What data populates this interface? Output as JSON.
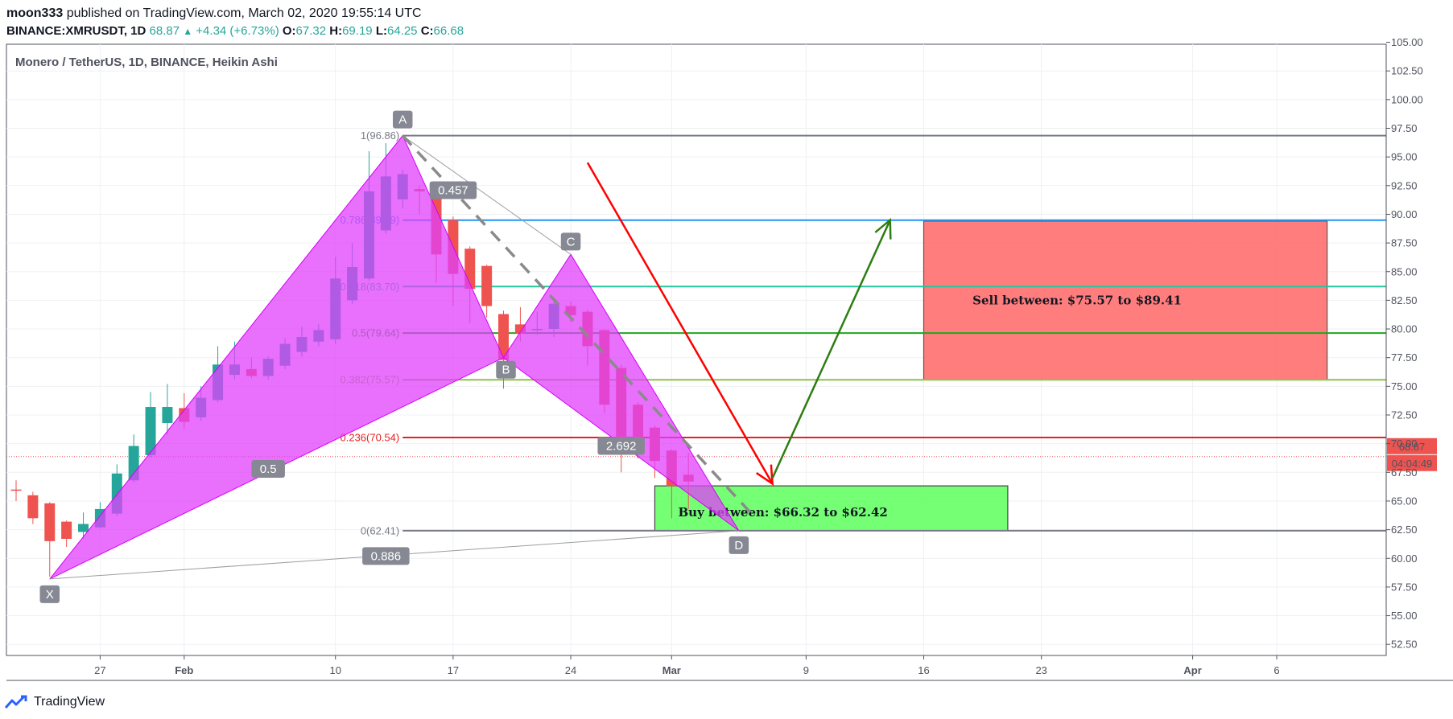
{
  "header": {
    "author": "moon333",
    "published": "published on TradingView.com, March 02, 2020 19:55:14 UTC",
    "symbol": "BINANCE:XMRUSDT, 1D",
    "last": "68.87",
    "change": "+4.34 (+6.73%)",
    "o_label": "O:",
    "o_value": "67.32",
    "h_label": "H:",
    "h_value": "69.19",
    "l_label": "L:",
    "l_value": "64.25",
    "c_label": "C:",
    "c_value": "66.68"
  },
  "colors": {
    "up": "#26a69a",
    "down": "#ef5350",
    "pattern_fill": "#e040fb",
    "pattern_stroke": "#d500f9",
    "buy_zone": "#66ff66",
    "sell_zone": "#ff6f6f",
    "price_tag": "#ef5350",
    "red_arrow": "#ff0000",
    "green_arrow": "#2e7d12"
  },
  "footer": {
    "brand": "TradingView",
    "logo_icon": "tradingview-logo-icon"
  },
  "chart_data": {
    "type": "candlestick",
    "title": "Monero / TetherUS, 1D, BINANCE, Heikin Ashi",
    "x_axis": {
      "start_date": "2020-01-22",
      "end_date": "2020-04-13",
      "ticks": [
        {
          "date": "2020-01-27",
          "label": "27"
        },
        {
          "date": "2020-02-01",
          "label": "Feb"
        },
        {
          "date": "2020-02-10",
          "label": "10"
        },
        {
          "date": "2020-02-17",
          "label": "17"
        },
        {
          "date": "2020-02-24",
          "label": "24"
        },
        {
          "date": "2020-03-01",
          "label": "Mar"
        },
        {
          "date": "2020-03-09",
          "label": "9"
        },
        {
          "date": "2020-03-16",
          "label": "16"
        },
        {
          "date": "2020-03-23",
          "label": "23"
        },
        {
          "date": "2020-04-01",
          "label": "Apr"
        },
        {
          "date": "2020-04-06",
          "label": "6"
        }
      ]
    },
    "y_axis": {
      "range": [
        51.5,
        105.0
      ],
      "ticks": [
        "52.50",
        "55.00",
        "57.50",
        "60.00",
        "62.50",
        "65.00",
        "67.50",
        "70.00",
        "72.50",
        "75.00",
        "77.50",
        "80.00",
        "82.50",
        "85.00",
        "87.50",
        "90.00",
        "92.50",
        "95.00",
        "97.50",
        "100.00",
        "102.50",
        "105.00"
      ]
    },
    "last_price": {
      "value": 68.87,
      "label": "68.87",
      "countdown": "04:04:49"
    },
    "candles": [
      {
        "date": "2020-01-22",
        "o": 66.0,
        "h": 66.8,
        "l": 65.0,
        "c": 65.9
      },
      {
        "date": "2020-01-23",
        "o": 65.5,
        "h": 65.8,
        "l": 63.0,
        "c": 63.5
      },
      {
        "date": "2020-01-24",
        "o": 64.8,
        "h": 64.9,
        "l": 58.4,
        "c": 61.5
      },
      {
        "date": "2020-01-25",
        "o": 63.2,
        "h": 63.3,
        "l": 61.0,
        "c": 61.7
      },
      {
        "date": "2020-01-26",
        "o": 62.3,
        "h": 64.0,
        "l": 61.7,
        "c": 63.0
      },
      {
        "date": "2020-01-27",
        "o": 62.7,
        "h": 64.9,
        "l": 62.6,
        "c": 64.3
      },
      {
        "date": "2020-01-28",
        "o": 63.9,
        "h": 68.2,
        "l": 63.7,
        "c": 67.4
      },
      {
        "date": "2020-01-29",
        "o": 66.8,
        "h": 70.8,
        "l": 66.6,
        "c": 69.8
      },
      {
        "date": "2020-01-30",
        "o": 69.0,
        "h": 74.5,
        "l": 68.8,
        "c": 73.2
      },
      {
        "date": "2020-01-31",
        "o": 71.8,
        "h": 75.2,
        "l": 70.8,
        "c": 73.2
      },
      {
        "date": "2020-02-01",
        "o": 73.1,
        "h": 74.4,
        "l": 71.3,
        "c": 71.9
      },
      {
        "date": "2020-02-02",
        "o": 72.3,
        "h": 75.0,
        "l": 72.0,
        "c": 74.0
      },
      {
        "date": "2020-02-03",
        "o": 73.8,
        "h": 78.5,
        "l": 73.6,
        "c": 76.9
      },
      {
        "date": "2020-02-04",
        "o": 76.0,
        "h": 78.9,
        "l": 75.6,
        "c": 76.9
      },
      {
        "date": "2020-02-05",
        "o": 76.5,
        "h": 77.5,
        "l": 75.7,
        "c": 75.9
      },
      {
        "date": "2020-02-06",
        "o": 75.9,
        "h": 77.6,
        "l": 75.6,
        "c": 77.4
      },
      {
        "date": "2020-02-07",
        "o": 76.8,
        "h": 79.2,
        "l": 76.5,
        "c": 78.7
      },
      {
        "date": "2020-02-08",
        "o": 78.0,
        "h": 80.2,
        "l": 77.6,
        "c": 79.3
      },
      {
        "date": "2020-02-09",
        "o": 78.9,
        "h": 80.4,
        "l": 78.5,
        "c": 79.9
      },
      {
        "date": "2020-02-10",
        "o": 79.1,
        "h": 86.3,
        "l": 78.7,
        "c": 84.4
      },
      {
        "date": "2020-02-11",
        "o": 82.5,
        "h": 87.5,
        "l": 82.2,
        "c": 85.4
      },
      {
        "date": "2020-02-12",
        "o": 84.4,
        "h": 95.5,
        "l": 84.2,
        "c": 92.0
      },
      {
        "date": "2020-02-13",
        "o": 88.6,
        "h": 96.2,
        "l": 88.3,
        "c": 93.3
      },
      {
        "date": "2020-02-14",
        "o": 91.3,
        "h": 93.9,
        "l": 90.5,
        "c": 93.5
      },
      {
        "date": "2020-02-15",
        "o": 92.2,
        "h": 92.5,
        "l": 90.0,
        "c": 92.0
      },
      {
        "date": "2020-02-16",
        "o": 92.2,
        "h": 92.4,
        "l": 84.0,
        "c": 86.5
      },
      {
        "date": "2020-02-17",
        "o": 89.5,
        "h": 89.8,
        "l": 82.0,
        "c": 84.8
      },
      {
        "date": "2020-02-18",
        "o": 87.0,
        "h": 87.2,
        "l": 80.5,
        "c": 83.5
      },
      {
        "date": "2020-02-19",
        "o": 85.5,
        "h": 85.6,
        "l": 81.0,
        "c": 82.0
      },
      {
        "date": "2020-02-20",
        "o": 81.3,
        "h": 81.6,
        "l": 74.8,
        "c": 77.3
      },
      {
        "date": "2020-02-21",
        "o": 80.4,
        "h": 81.9,
        "l": 78.9,
        "c": 79.6
      },
      {
        "date": "2020-02-22",
        "o": 79.9,
        "h": 81.5,
        "l": 79.5,
        "c": 80.0
      },
      {
        "date": "2020-02-23",
        "o": 80.0,
        "h": 82.5,
        "l": 79.3,
        "c": 82.2
      },
      {
        "date": "2020-02-24",
        "o": 82.0,
        "h": 82.4,
        "l": 80.6,
        "c": 81.2
      },
      {
        "date": "2020-02-25",
        "o": 81.5,
        "h": 81.7,
        "l": 76.8,
        "c": 78.5
      },
      {
        "date": "2020-02-26",
        "o": 79.9,
        "h": 80.0,
        "l": 72.7,
        "c": 73.4
      },
      {
        "date": "2020-02-27",
        "o": 76.6,
        "h": 76.9,
        "l": 67.5,
        "c": 70.3
      },
      {
        "date": "2020-02-28",
        "o": 73.4,
        "h": 73.6,
        "l": 68.7,
        "c": 69.8
      },
      {
        "date": "2020-02-29",
        "o": 71.4,
        "h": 71.6,
        "l": 67.0,
        "c": 68.5
      },
      {
        "date": "2020-03-01",
        "o": 69.4,
        "h": 69.5,
        "l": 63.5,
        "c": 66.3
      },
      {
        "date": "2020-03-02",
        "o": 67.3,
        "h": 69.2,
        "l": 64.3,
        "c": 66.7
      }
    ]
  },
  "drawings": {
    "pattern_points": {
      "X": {
        "date": "2020-01-24",
        "price": 58.2,
        "label": "X"
      },
      "A": {
        "date": "2020-02-14",
        "price": 96.86,
        "label": "A"
      },
      "B": {
        "date": "2020-02-20",
        "price": 77.5,
        "label": "B"
      },
      "C": {
        "date": "2020-02-24",
        "price": 86.5,
        "label": "C"
      },
      "D": {
        "date": "2020-03-05",
        "price": 62.41,
        "label": "D"
      }
    },
    "ratios": [
      {
        "label": "0.457",
        "date": "2020-02-17",
        "price": 92.1
      },
      {
        "label": "0.5",
        "date": "2020-02-06",
        "price": 67.8
      },
      {
        "label": "2.692",
        "date": "2020-02-27",
        "price": 69.8
      },
      {
        "label": "0.886",
        "date": "2020-02-13",
        "price": 60.2
      }
    ],
    "fib_levels": [
      {
        "label": "1(96.86)",
        "price": 96.86,
        "color": "#787b86"
      },
      {
        "label": "0.786(89.49)",
        "price": 89.49,
        "color": "#2196f3"
      },
      {
        "label": "0.618(83.70)",
        "price": 83.7,
        "color": "#26c6a0"
      },
      {
        "label": "0.5(79.64)",
        "price": 79.64,
        "color": "#1fa71f"
      },
      {
        "label": "0.382(75.57)",
        "price": 75.57,
        "color": "#8bc34a"
      },
      {
        "label": "0.236(70.54)",
        "price": 70.54,
        "color": "#e91e1e"
      },
      {
        "label": "0(62.41)",
        "price": 62.41,
        "color": "#787b86"
      }
    ],
    "fib_start_date": "2020-02-14",
    "buy_zone": {
      "label": "Buy between: $66.32 to $62.42",
      "from": "2020-02-29",
      "to": "2020-03-21",
      "high": 66.32,
      "low": 62.42
    },
    "sell_zone": {
      "label": "Sell between: $75.57 to $89.41",
      "from": "2020-03-16",
      "to": "2020-04-09",
      "high": 89.41,
      "low": 75.57
    },
    "red_arrow": {
      "from_date": "2020-02-25",
      "from_price": 94.5,
      "to_date": "2020-03-07",
      "to_price": 66.5
    },
    "green_arrow": {
      "from_date": "2020-03-07",
      "from_price": 67.0,
      "to_date": "2020-03-14",
      "to_price": 89.5
    },
    "dashed_line": {
      "from_date": "2020-02-14",
      "from_price": 96.86,
      "to_date": "2020-03-06",
      "to_price": 63.5
    }
  }
}
